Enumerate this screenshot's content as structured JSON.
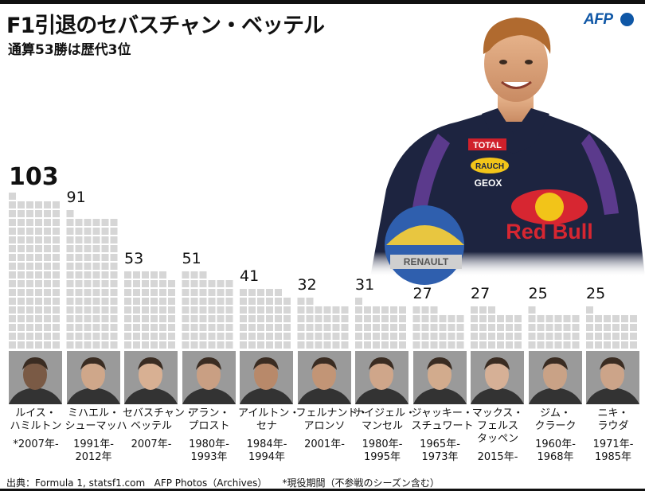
{
  "header": {
    "title": "F1引退のセバスチャン・ベッテル",
    "subtitle": "通算53勝は歴代3位",
    "logo": "AFP"
  },
  "chart_data": {
    "type": "bar",
    "unit_shape": "square-grid",
    "categories": [
      "ルイス・ハミルトン",
      "ミハエル・シューマッハ",
      "セバスチャン・ベッテル",
      "アラン・プロスト",
      "アイルトン・セナ",
      "フェルナンド・アロンソ",
      "ナイジェル・マンセル",
      "ジャッキー・スチュワート",
      "マックス・フェルスタッペン",
      "ジム・クラーク",
      "ニキ・ラウダ"
    ],
    "values": [
      103,
      91,
      53,
      51,
      41,
      32,
      31,
      27,
      27,
      25,
      25
    ],
    "value_labels": [
      "103",
      "91",
      "53",
      "51",
      "41",
      "32",
      "31",
      "27",
      "27",
      "25",
      "25"
    ],
    "colors": {
      "square": "#d6d6d6",
      "text": "#111111"
    }
  },
  "drivers": [
    {
      "name": "ルイス・\nハミルトン",
      "years": "*2007年-",
      "portrait": "driver-portrait-icon"
    },
    {
      "name": "ミハエル・\nシューマッハ",
      "years": "1991年-\n2012年",
      "portrait": "driver-portrait-icon"
    },
    {
      "name": "セバスチャン・\nベッテル",
      "years": "2007年-",
      "portrait": "driver-portrait-icon"
    },
    {
      "name": "アラン・\nプロスト",
      "years": "1980年-\n1993年",
      "portrait": "driver-portrait-icon"
    },
    {
      "name": "アイルトン・\nセナ",
      "years": "1984年-\n1994年",
      "portrait": "driver-portrait-icon"
    },
    {
      "name": "フェルナンド・\nアロンソ",
      "years": "2001年-",
      "portrait": "driver-portrait-icon"
    },
    {
      "name": "ナイジェル・\nマンセル",
      "years": "1980年-\n1995年",
      "portrait": "driver-portrait-icon"
    },
    {
      "name": "ジャッキー・\nスチュワート",
      "years": "1965年-\n1973年",
      "portrait": "driver-portrait-icon"
    },
    {
      "name": "マックス・\nフェルス\nタッペン",
      "years": "2015年-",
      "portrait": "driver-portrait-icon"
    },
    {
      "name": "ジム・\nクラーク",
      "years": "1960年-\n1968年",
      "portrait": "driver-portrait-icon"
    },
    {
      "name": "ニキ・\nラウダ",
      "years": "1971年-\n1985年",
      "portrait": "driver-portrait-icon"
    }
  ],
  "hero_photo": {
    "icon": "vettel-photo-icon",
    "sponsor_text": "Red Bull",
    "sponsor_text2": "TOTAL",
    "sponsor_text3": "RAUCH",
    "sponsor_text4": "GEOX",
    "sponsor_text5": "RENAULT"
  },
  "footer": {
    "source": "出典：Formula 1, statsf1.com",
    "photos": "AFP Photos（Archives）",
    "note": "*現役期間（不参戦のシーズン含む）"
  }
}
